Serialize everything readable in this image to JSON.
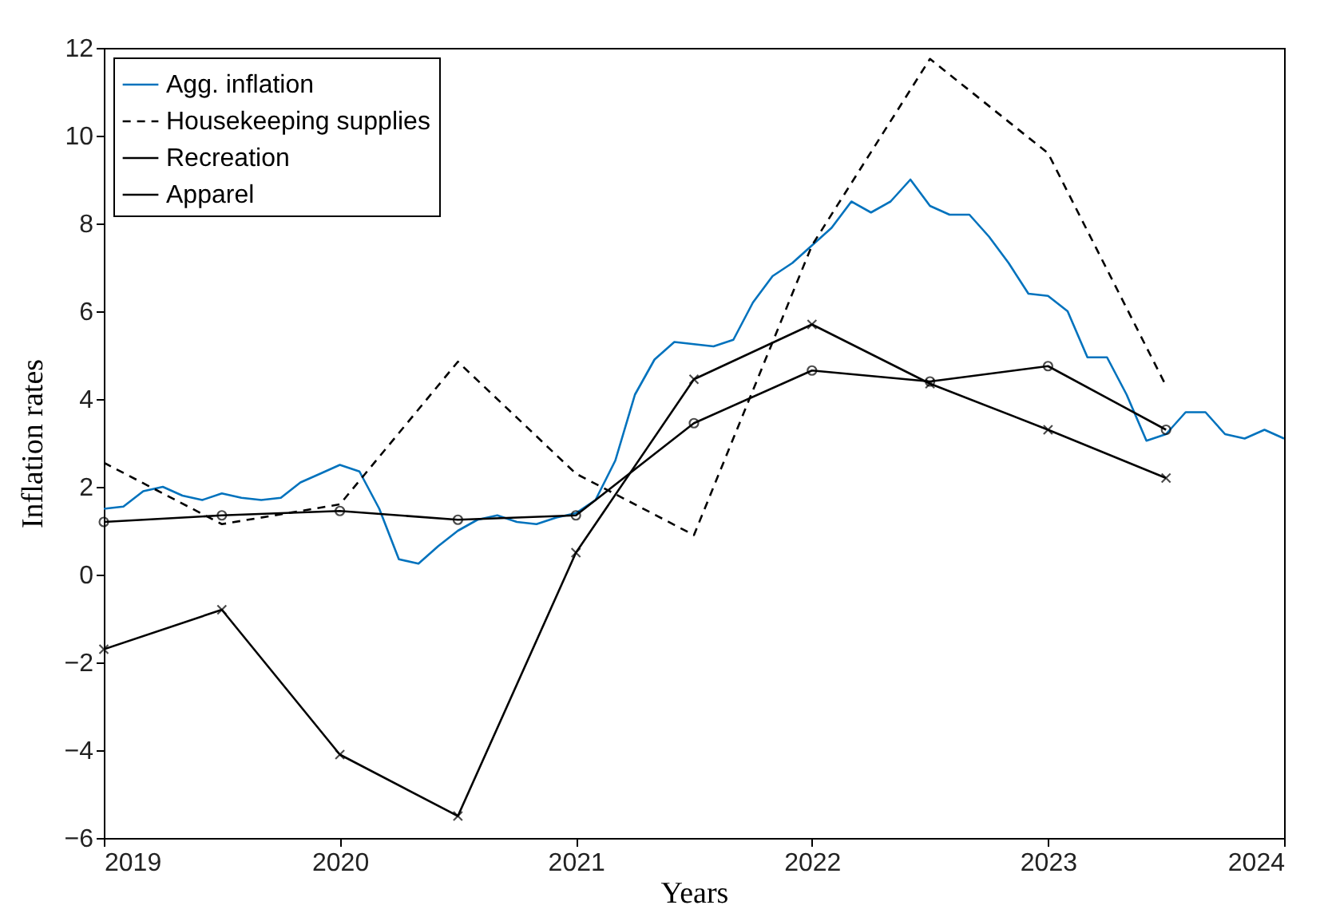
{
  "chart_data": {
    "type": "line",
    "xlabel": "Years",
    "ylabel": "Inflation rates",
    "xlim": [
      2019,
      2024
    ],
    "xticks": [
      2019,
      2020,
      2021,
      2022,
      2023,
      2024
    ],
    "ylim": [
      -6,
      12
    ],
    "yticks": [
      -6,
      -4,
      -2,
      0,
      2,
      4,
      6,
      8,
      10,
      12
    ],
    "grid": false,
    "legend": "top left",
    "series": [
      {
        "name": "Agg. inflation",
        "color": "#0072bd",
        "line_style": "solid",
        "marker": "none",
        "x": [
          2019,
          2019.083,
          2019.167,
          2019.25,
          2019.333,
          2019.417,
          2019.5,
          2019.583,
          2019.667,
          2019.75,
          2019.833,
          2019.917,
          2020,
          2020.083,
          2020.167,
          2020.25,
          2020.333,
          2020.417,
          2020.5,
          2020.583,
          2020.667,
          2020.75,
          2020.833,
          2020.917,
          2021,
          2021.083,
          2021.167,
          2021.25,
          2021.333,
          2021.417,
          2021.5,
          2021.583,
          2021.667,
          2021.75,
          2021.833,
          2021.917,
          2022,
          2022.083,
          2022.167,
          2022.25,
          2022.333,
          2022.417,
          2022.5,
          2022.583,
          2022.667,
          2022.75,
          2022.833,
          2022.917,
          2023,
          2023.083,
          2023.167,
          2023.25,
          2023.333,
          2023.417,
          2023.5,
          2023.583,
          2023.667,
          2023.75,
          2023.833,
          2023.917,
          2024
        ],
        "values": [
          1.5,
          1.55,
          1.9,
          2.0,
          1.8,
          1.7,
          1.85,
          1.75,
          1.7,
          1.75,
          2.1,
          2.3,
          2.5,
          2.35,
          1.5,
          0.35,
          0.25,
          0.65,
          1.0,
          1.25,
          1.35,
          1.2,
          1.15,
          1.3,
          1.4,
          1.7,
          2.6,
          4.1,
          4.9,
          5.3,
          5.25,
          5.2,
          5.35,
          6.2,
          6.8,
          7.1,
          7.5,
          7.9,
          8.5,
          8.25,
          8.5,
          9.0,
          8.4,
          8.2,
          8.2,
          7.7,
          7.1,
          6.4,
          6.35,
          6.0,
          4.95,
          4.95,
          4.1,
          3.05,
          3.2,
          3.7,
          3.7,
          3.2,
          3.1,
          3.3,
          3.1
        ]
      },
      {
        "name": "Housekeeping supplies",
        "color": "#000000",
        "line_style": "dashed",
        "marker": "none",
        "x": [
          2019,
          2019.5,
          2020,
          2020.5,
          2021,
          2021.5,
          2022,
          2022.5,
          2023,
          2023.5
        ],
        "values": [
          2.55,
          1.15,
          1.6,
          4.85,
          2.3,
          0.9,
          7.5,
          11.75,
          9.6,
          4.3
        ]
      },
      {
        "name": "Recreation",
        "color": "#000000",
        "line_style": "solid",
        "marker": "circle",
        "x": [
          2019,
          2019.5,
          2020,
          2020.5,
          2021,
          2021.5,
          2022,
          2022.5,
          2023,
          2023.5
        ],
        "values": [
          1.2,
          1.35,
          1.45,
          1.25,
          1.35,
          3.45,
          4.65,
          4.4,
          4.75,
          3.3
        ]
      },
      {
        "name": "Apparel",
        "color": "#000000",
        "line_style": "solid",
        "marker": "cross",
        "x": [
          2019,
          2019.5,
          2020,
          2020.5,
          2021,
          2021.5,
          2022,
          2022.5,
          2023,
          2023.5
        ],
        "values": [
          -1.7,
          -0.8,
          -4.1,
          -5.5,
          0.5,
          4.45,
          5.7,
          4.35,
          3.3,
          2.2
        ]
      }
    ]
  }
}
